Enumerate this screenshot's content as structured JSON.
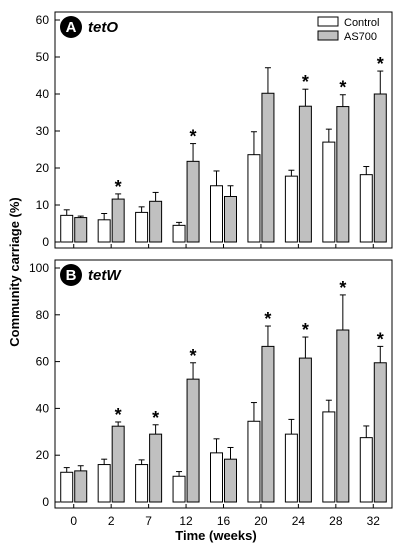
{
  "chart_data": [
    {
      "type": "bar",
      "panel_letter": "A",
      "panel_name": "tetO",
      "categories": [
        "0",
        "2",
        "7",
        "12",
        "16",
        "20",
        "24",
        "28",
        "32"
      ],
      "ylim": [
        0,
        60
      ],
      "yticks": [
        0,
        10,
        20,
        30,
        40,
        50,
        60
      ],
      "series": [
        {
          "name": "Control",
          "color": "#ffffff",
          "values": [
            7.2,
            6.0,
            8.0,
            4.5,
            15.2,
            23.6,
            17.8,
            27.0,
            18.2
          ],
          "errors": [
            1.5,
            1.7,
            1.5,
            0.8,
            4.0,
            6.2,
            1.6,
            3.5,
            2.2
          ]
        },
        {
          "name": "AS700",
          "color": "#c0c0c0",
          "values": [
            6.6,
            11.6,
            11.0,
            21.8,
            12.3,
            40.2,
            36.7,
            36.6,
            40.0
          ],
          "errors": [
            0.4,
            1.4,
            2.4,
            4.8,
            2.9,
            6.9,
            4.6,
            3.2,
            6.2
          ]
        }
      ],
      "significant": [
        false,
        true,
        false,
        true,
        false,
        false,
        true,
        true,
        true
      ],
      "legend_position": "top-right"
    },
    {
      "type": "bar",
      "panel_letter": "B",
      "panel_name": "tetW",
      "categories": [
        "0",
        "2",
        "7",
        "12",
        "16",
        "20",
        "24",
        "28",
        "32"
      ],
      "ylim": [
        0,
        100
      ],
      "yticks": [
        0,
        20,
        40,
        60,
        80,
        100
      ],
      "series": [
        {
          "name": "Control",
          "color": "#ffffff",
          "values": [
            12.7,
            16.0,
            16.0,
            11.0,
            21.0,
            34.5,
            29.0,
            38.5,
            27.5
          ],
          "errors": [
            2.0,
            2.3,
            2.0,
            2.0,
            6.0,
            8.0,
            6.3,
            5.0,
            5.0
          ]
        },
        {
          "name": "AS700",
          "color": "#c0c0c0",
          "values": [
            13.3,
            32.4,
            29.0,
            52.5,
            18.3,
            66.5,
            61.5,
            73.5,
            59.5
          ],
          "errors": [
            2.2,
            1.8,
            4.0,
            7.0,
            5.0,
            8.7,
            9.0,
            15.0,
            7.0
          ]
        }
      ],
      "significant": [
        false,
        true,
        true,
        true,
        false,
        true,
        true,
        true,
        true
      ]
    }
  ],
  "labels": {
    "ylabel": "Community carriage (%)",
    "xlabel": "Time (weeks)",
    "star": "*"
  }
}
